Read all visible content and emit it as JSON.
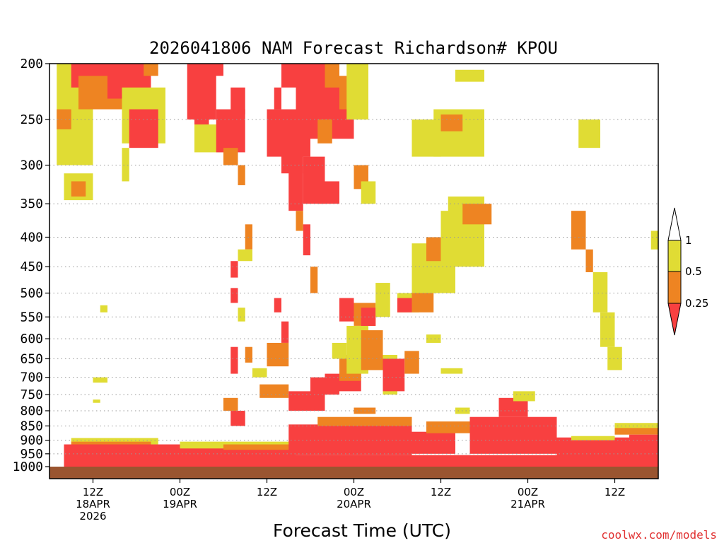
{
  "chart_data": {
    "type": "heatmap",
    "title": "2026041806 NAM Forecast Richardson# KPOU",
    "xlabel": "Forecast Time (UTC)",
    "ylabel": "",
    "credit": "coolwx.com/models",
    "y_scale": "log",
    "ylim": [
      1000,
      200
    ],
    "y_ticks": [
      "200",
      "250",
      "300",
      "350",
      "400",
      "450",
      "500",
      "550",
      "600",
      "650",
      "700",
      "750",
      "800",
      "850",
      "900",
      "950",
      "1000"
    ],
    "y_tick_values": [
      200,
      250,
      300,
      350,
      400,
      450,
      500,
      550,
      600,
      650,
      700,
      750,
      800,
      850,
      900,
      950,
      1000
    ],
    "xlim": [
      6,
      90
    ],
    "x_ticks": [
      {
        "h": 12,
        "line1": "12Z",
        "line2": "18APR",
        "line3": "2026"
      },
      {
        "h": 24,
        "line1": "00Z",
        "line2": "19APR",
        "line3": ""
      },
      {
        "h": 36,
        "line1": "12Z",
        "line2": "",
        "line3": ""
      },
      {
        "h": 48,
        "line1": "00Z",
        "line2": "20APR",
        "line3": ""
      },
      {
        "h": 60,
        "line1": "12Z",
        "line2": "",
        "line3": ""
      },
      {
        "h": 72,
        "line1": "00Z",
        "line2": "21APR",
        "line3": ""
      },
      {
        "h": 84,
        "line1": "12Z",
        "line2": "",
        "line3": ""
      }
    ],
    "grid": "dotted horizontal at pressure ticks",
    "legend": {
      "placement": "right",
      "labels": [
        "1",
        "0.5",
        "0.25"
      ],
      "bins": [
        {
          "label": "< 0.25",
          "color": "#f84040"
        },
        {
          "label": "0.25 - 0.5",
          "color": "#ee8422"
        },
        {
          "label": "0.5 - 1",
          "color": "#e0dc34"
        },
        {
          "label": "> 1",
          "color": "#ffffff"
        }
      ]
    },
    "colors": {
      "red": "#f84040",
      "orange": "#ee8422",
      "yellow": "#e0dc34",
      "ground": "#9a5530"
    },
    "ground": {
      "from_hpa": 1000,
      "to_hpa": 1025
    },
    "regions": [
      {
        "x": [
          9,
          21
        ],
        "p": [
          892,
          915
        ],
        "c": "yellow"
      },
      {
        "x": [
          9,
          20
        ],
        "p": [
          905,
          925
        ],
        "c": "orange"
      },
      {
        "x": [
          8,
          30
        ],
        "p": [
          915,
          960
        ],
        "c": "red"
      },
      {
        "x": [
          8,
          92
        ],
        "p": [
          955,
          1000
        ],
        "c": "red"
      },
      {
        "x": [
          24,
          46
        ],
        "p": [
          905,
          930
        ],
        "c": "yellow"
      },
      {
        "x": [
          30,
          46
        ],
        "p": [
          915,
          945
        ],
        "c": "orange"
      },
      {
        "x": [
          26,
          40
        ],
        "p": [
          935,
          960
        ],
        "c": "red"
      },
      {
        "x": [
          39,
          56
        ],
        "p": [
          845,
          955
        ],
        "c": "red"
      },
      {
        "x": [
          43,
          56
        ],
        "p": [
          820,
          850
        ],
        "c": "orange"
      },
      {
        "x": [
          56,
          62
        ],
        "p": [
          870,
          950
        ],
        "c": "red"
      },
      {
        "x": [
          58,
          64
        ],
        "p": [
          835,
          875
        ],
        "c": "orange"
      },
      {
        "x": [
          64,
          76
        ],
        "p": [
          820,
          950
        ],
        "c": "red"
      },
      {
        "x": [
          68,
          72
        ],
        "p": [
          760,
          820
        ],
        "c": "red"
      },
      {
        "x": [
          70,
          73
        ],
        "p": [
          740,
          770
        ],
        "c": "yellow"
      },
      {
        "x": [
          76,
          86
        ],
        "p": [
          890,
          960
        ],
        "c": "red"
      },
      {
        "x": [
          78,
          84
        ],
        "p": [
          885,
          900
        ],
        "c": "yellow"
      },
      {
        "x": [
          84,
          90
        ],
        "p": [
          855,
          880
        ],
        "c": "orange"
      },
      {
        "x": [
          84,
          90
        ],
        "p": [
          840,
          857
        ],
        "c": "yellow"
      },
      {
        "x": [
          86,
          92
        ],
        "p": [
          880,
          960
        ],
        "c": "red"
      },
      {
        "x": [
          12,
          14
        ],
        "p": [
          700,
          715
        ],
        "c": "yellow"
      },
      {
        "x": [
          12,
          13
        ],
        "p": [
          765,
          775
        ],
        "c": "yellow"
      },
      {
        "x": [
          13,
          14
        ],
        "p": [
          525,
          540
        ],
        "c": "yellow"
      },
      {
        "x": [
          7,
          12
        ],
        "p": [
          200,
          300
        ],
        "c": "yellow"
      },
      {
        "x": [
          7,
          9
        ],
        "p": [
          240,
          260
        ],
        "c": "orange"
      },
      {
        "x": [
          9,
          14
        ],
        "p": [
          200,
          220
        ],
        "c": "red"
      },
      {
        "x": [
          10,
          16
        ],
        "p": [
          210,
          240
        ],
        "c": "orange"
      },
      {
        "x": [
          14,
          20
        ],
        "p": [
          200,
          230
        ],
        "c": "red"
      },
      {
        "x": [
          16,
          22
        ],
        "p": [
          220,
          275
        ],
        "c": "yellow"
      },
      {
        "x": [
          17,
          21
        ],
        "p": [
          240,
          280
        ],
        "c": "red"
      },
      {
        "x": [
          19,
          21
        ],
        "p": [
          200,
          210
        ],
        "c": "orange"
      },
      {
        "x": [
          8,
          12
        ],
        "p": [
          310,
          345
        ],
        "c": "yellow"
      },
      {
        "x": [
          9,
          11
        ],
        "p": [
          320,
          340
        ],
        "c": "orange"
      },
      {
        "x": [
          16,
          17
        ],
        "p": [
          280,
          320
        ],
        "c": "yellow"
      },
      {
        "x": [
          25,
          29
        ],
        "p": [
          200,
          250
        ],
        "c": "red"
      },
      {
        "x": [
          26,
          28
        ],
        "p": [
          240,
          280
        ],
        "c": "red"
      },
      {
        "x": [
          26,
          30
        ],
        "p": [
          255,
          285
        ],
        "c": "yellow"
      },
      {
        "x": [
          28,
          30
        ],
        "p": [
          200,
          210
        ],
        "c": "red"
      },
      {
        "x": [
          29,
          33
        ],
        "p": [
          240,
          285
        ],
        "c": "red"
      },
      {
        "x": [
          30,
          32
        ],
        "p": [
          280,
          300
        ],
        "c": "orange"
      },
      {
        "x": [
          31,
          33
        ],
        "p": [
          220,
          245
        ],
        "c": "red"
      },
      {
        "x": [
          32,
          33
        ],
        "p": [
          300,
          325
        ],
        "c": "orange"
      },
      {
        "x": [
          33,
          34
        ],
        "p": [
          380,
          420
        ],
        "c": "orange"
      },
      {
        "x": [
          32,
          34
        ],
        "p": [
          420,
          440
        ],
        "c": "yellow"
      },
      {
        "x": [
          31,
          32
        ],
        "p": [
          440,
          470
        ],
        "c": "red"
      },
      {
        "x": [
          31,
          32
        ],
        "p": [
          490,
          520
        ],
        "c": "red"
      },
      {
        "x": [
          32,
          33
        ],
        "p": [
          530,
          560
        ],
        "c": "yellow"
      },
      {
        "x": [
          31,
          32
        ],
        "p": [
          620,
          690
        ],
        "c": "red"
      },
      {
        "x": [
          33,
          34
        ],
        "p": [
          620,
          660
        ],
        "c": "orange"
      },
      {
        "x": [
          34,
          36
        ],
        "p": [
          675,
          700
        ],
        "c": "yellow"
      },
      {
        "x": [
          30,
          32
        ],
        "p": [
          760,
          800
        ],
        "c": "orange"
      },
      {
        "x": [
          31,
          33
        ],
        "p": [
          800,
          850
        ],
        "c": "red"
      },
      {
        "x": [
          38,
          46
        ],
        "p": [
          200,
          220
        ],
        "c": "red"
      },
      {
        "x": [
          36,
          42
        ],
        "p": [
          240,
          290
        ],
        "c": "red"
      },
      {
        "x": [
          37,
          38
        ],
        "p": [
          220,
          240
        ],
        "c": "red"
      },
      {
        "x": [
          40,
          48
        ],
        "p": [
          215,
          270
        ],
        "c": "red"
      },
      {
        "x": [
          38,
          41
        ],
        "p": [
          260,
          310
        ],
        "c": "red"
      },
      {
        "x": [
          39,
          41
        ],
        "p": [
          300,
          360
        ],
        "c": "red"
      },
      {
        "x": [
          41,
          44
        ],
        "p": [
          290,
          350
        ],
        "c": "red"
      },
      {
        "x": [
          43,
          46
        ],
        "p": [
          320,
          350
        ],
        "c": "red"
      },
      {
        "x": [
          43,
          45
        ],
        "p": [
          250,
          275
        ],
        "c": "orange"
      },
      {
        "x": [
          46,
          48
        ],
        "p": [
          210,
          240
        ],
        "c": "orange"
      },
      {
        "x": [
          47,
          50
        ],
        "p": [
          200,
          250
        ],
        "c": "yellow"
      },
      {
        "x": [
          48,
          50
        ],
        "p": [
          300,
          330
        ],
        "c": "orange"
      },
      {
        "x": [
          49,
          51
        ],
        "p": [
          320,
          350
        ],
        "c": "yellow"
      },
      {
        "x": [
          44,
          46
        ],
        "p": [
          200,
          220
        ],
        "c": "orange"
      },
      {
        "x": [
          40,
          41
        ],
        "p": [
          360,
          390
        ],
        "c": "orange"
      },
      {
        "x": [
          41,
          42
        ],
        "p": [
          380,
          430
        ],
        "c": "red"
      },
      {
        "x": [
          42,
          43
        ],
        "p": [
          450,
          500
        ],
        "c": "orange"
      },
      {
        "x": [
          37,
          38
        ],
        "p": [
          510,
          540
        ],
        "c": "red"
      },
      {
        "x": [
          38,
          39
        ],
        "p": [
          560,
          610
        ],
        "c": "red"
      },
      {
        "x": [
          36,
          39
        ],
        "p": [
          610,
          670
        ],
        "c": "orange"
      },
      {
        "x": [
          35,
          39
        ],
        "p": [
          720,
          760
        ],
        "c": "orange"
      },
      {
        "x": [
          39,
          44
        ],
        "p": [
          740,
          800
        ],
        "c": "red"
      },
      {
        "x": [
          42,
          46
        ],
        "p": [
          700,
          750
        ],
        "c": "red"
      },
      {
        "x": [
          44,
          49
        ],
        "p": [
          690,
          740
        ],
        "c": "red"
      },
      {
        "x": [
          46,
          49
        ],
        "p": [
          640,
          710
        ],
        "c": "orange"
      },
      {
        "x": [
          45,
          47
        ],
        "p": [
          610,
          650
        ],
        "c": "yellow"
      },
      {
        "x": [
          46,
          48
        ],
        "p": [
          510,
          560
        ],
        "c": "red"
      },
      {
        "x": [
          48,
          51
        ],
        "p": [
          520,
          570
        ],
        "c": "orange"
      },
      {
        "x": [
          47,
          50
        ],
        "p": [
          570,
          690
        ],
        "c": "yellow"
      },
      {
        "x": [
          49,
          52
        ],
        "p": [
          580,
          680
        ],
        "c": "orange"
      },
      {
        "x": [
          49,
          51
        ],
        "p": [
          530,
          570
        ],
        "c": "red"
      },
      {
        "x": [
          51,
          53
        ],
        "p": [
          480,
          550
        ],
        "c": "yellow"
      },
      {
        "x": [
          52,
          54
        ],
        "p": [
          640,
          750
        ],
        "c": "yellow"
      },
      {
        "x": [
          52,
          55
        ],
        "p": [
          650,
          740
        ],
        "c": "red"
      },
      {
        "x": [
          55,
          57
        ],
        "p": [
          630,
          690
        ],
        "c": "orange"
      },
      {
        "x": [
          54,
          57
        ],
        "p": [
          500,
          540
        ],
        "c": "yellow"
      },
      {
        "x": [
          54,
          56
        ],
        "p": [
          510,
          540
        ],
        "c": "red"
      },
      {
        "x": [
          56,
          59
        ],
        "p": [
          480,
          540
        ],
        "c": "orange"
      },
      {
        "x": [
          57,
          62
        ],
        "p": [
          430,
          500
        ],
        "c": "orange"
      },
      {
        "x": [
          56,
          62
        ],
        "p": [
          410,
          500
        ],
        "c": "yellow"
      },
      {
        "x": [
          58,
          61
        ],
        "p": [
          400,
          440
        ],
        "c": "orange"
      },
      {
        "x": [
          60,
          66
        ],
        "p": [
          360,
          450
        ],
        "c": "yellow"
      },
      {
        "x": [
          61,
          66
        ],
        "p": [
          340,
          400
        ],
        "c": "yellow"
      },
      {
        "x": [
          63,
          67
        ],
        "p": [
          350,
          380
        ],
        "c": "orange"
      },
      {
        "x": [
          56,
          60
        ],
        "p": [
          250,
          290
        ],
        "c": "yellow"
      },
      {
        "x": [
          59,
          66
        ],
        "p": [
          240,
          290
        ],
        "c": "yellow"
      },
      {
        "x": [
          60,
          63
        ],
        "p": [
          245,
          262
        ],
        "c": "orange"
      },
      {
        "x": [
          62,
          66
        ],
        "p": [
          205,
          215
        ],
        "c": "yellow"
      },
      {
        "x": [
          79,
          82
        ],
        "p": [
          250,
          280
        ],
        "c": "yellow"
      },
      {
        "x": [
          78,
          80
        ],
        "p": [
          360,
          420
        ],
        "c": "orange"
      },
      {
        "x": [
          80,
          81
        ],
        "p": [
          420,
          460
        ],
        "c": "orange"
      },
      {
        "x": [
          81,
          83
        ],
        "p": [
          460,
          540
        ],
        "c": "yellow"
      },
      {
        "x": [
          82,
          84
        ],
        "p": [
          540,
          620
        ],
        "c": "yellow"
      },
      {
        "x": [
          83,
          85
        ],
        "p": [
          620,
          680
        ],
        "c": "yellow"
      },
      {
        "x": [
          89,
          91
        ],
        "p": [
          390,
          420
        ],
        "c": "yellow"
      },
      {
        "x": [
          60,
          63
        ],
        "p": [
          675,
          690
        ],
        "c": "yellow"
      },
      {
        "x": [
          58,
          60
        ],
        "p": [
          590,
          610
        ],
        "c": "yellow"
      },
      {
        "x": [
          62,
          64
        ],
        "p": [
          790,
          810
        ],
        "c": "yellow"
      },
      {
        "x": [
          48,
          51
        ],
        "p": [
          790,
          810
        ],
        "c": "orange"
      }
    ]
  }
}
